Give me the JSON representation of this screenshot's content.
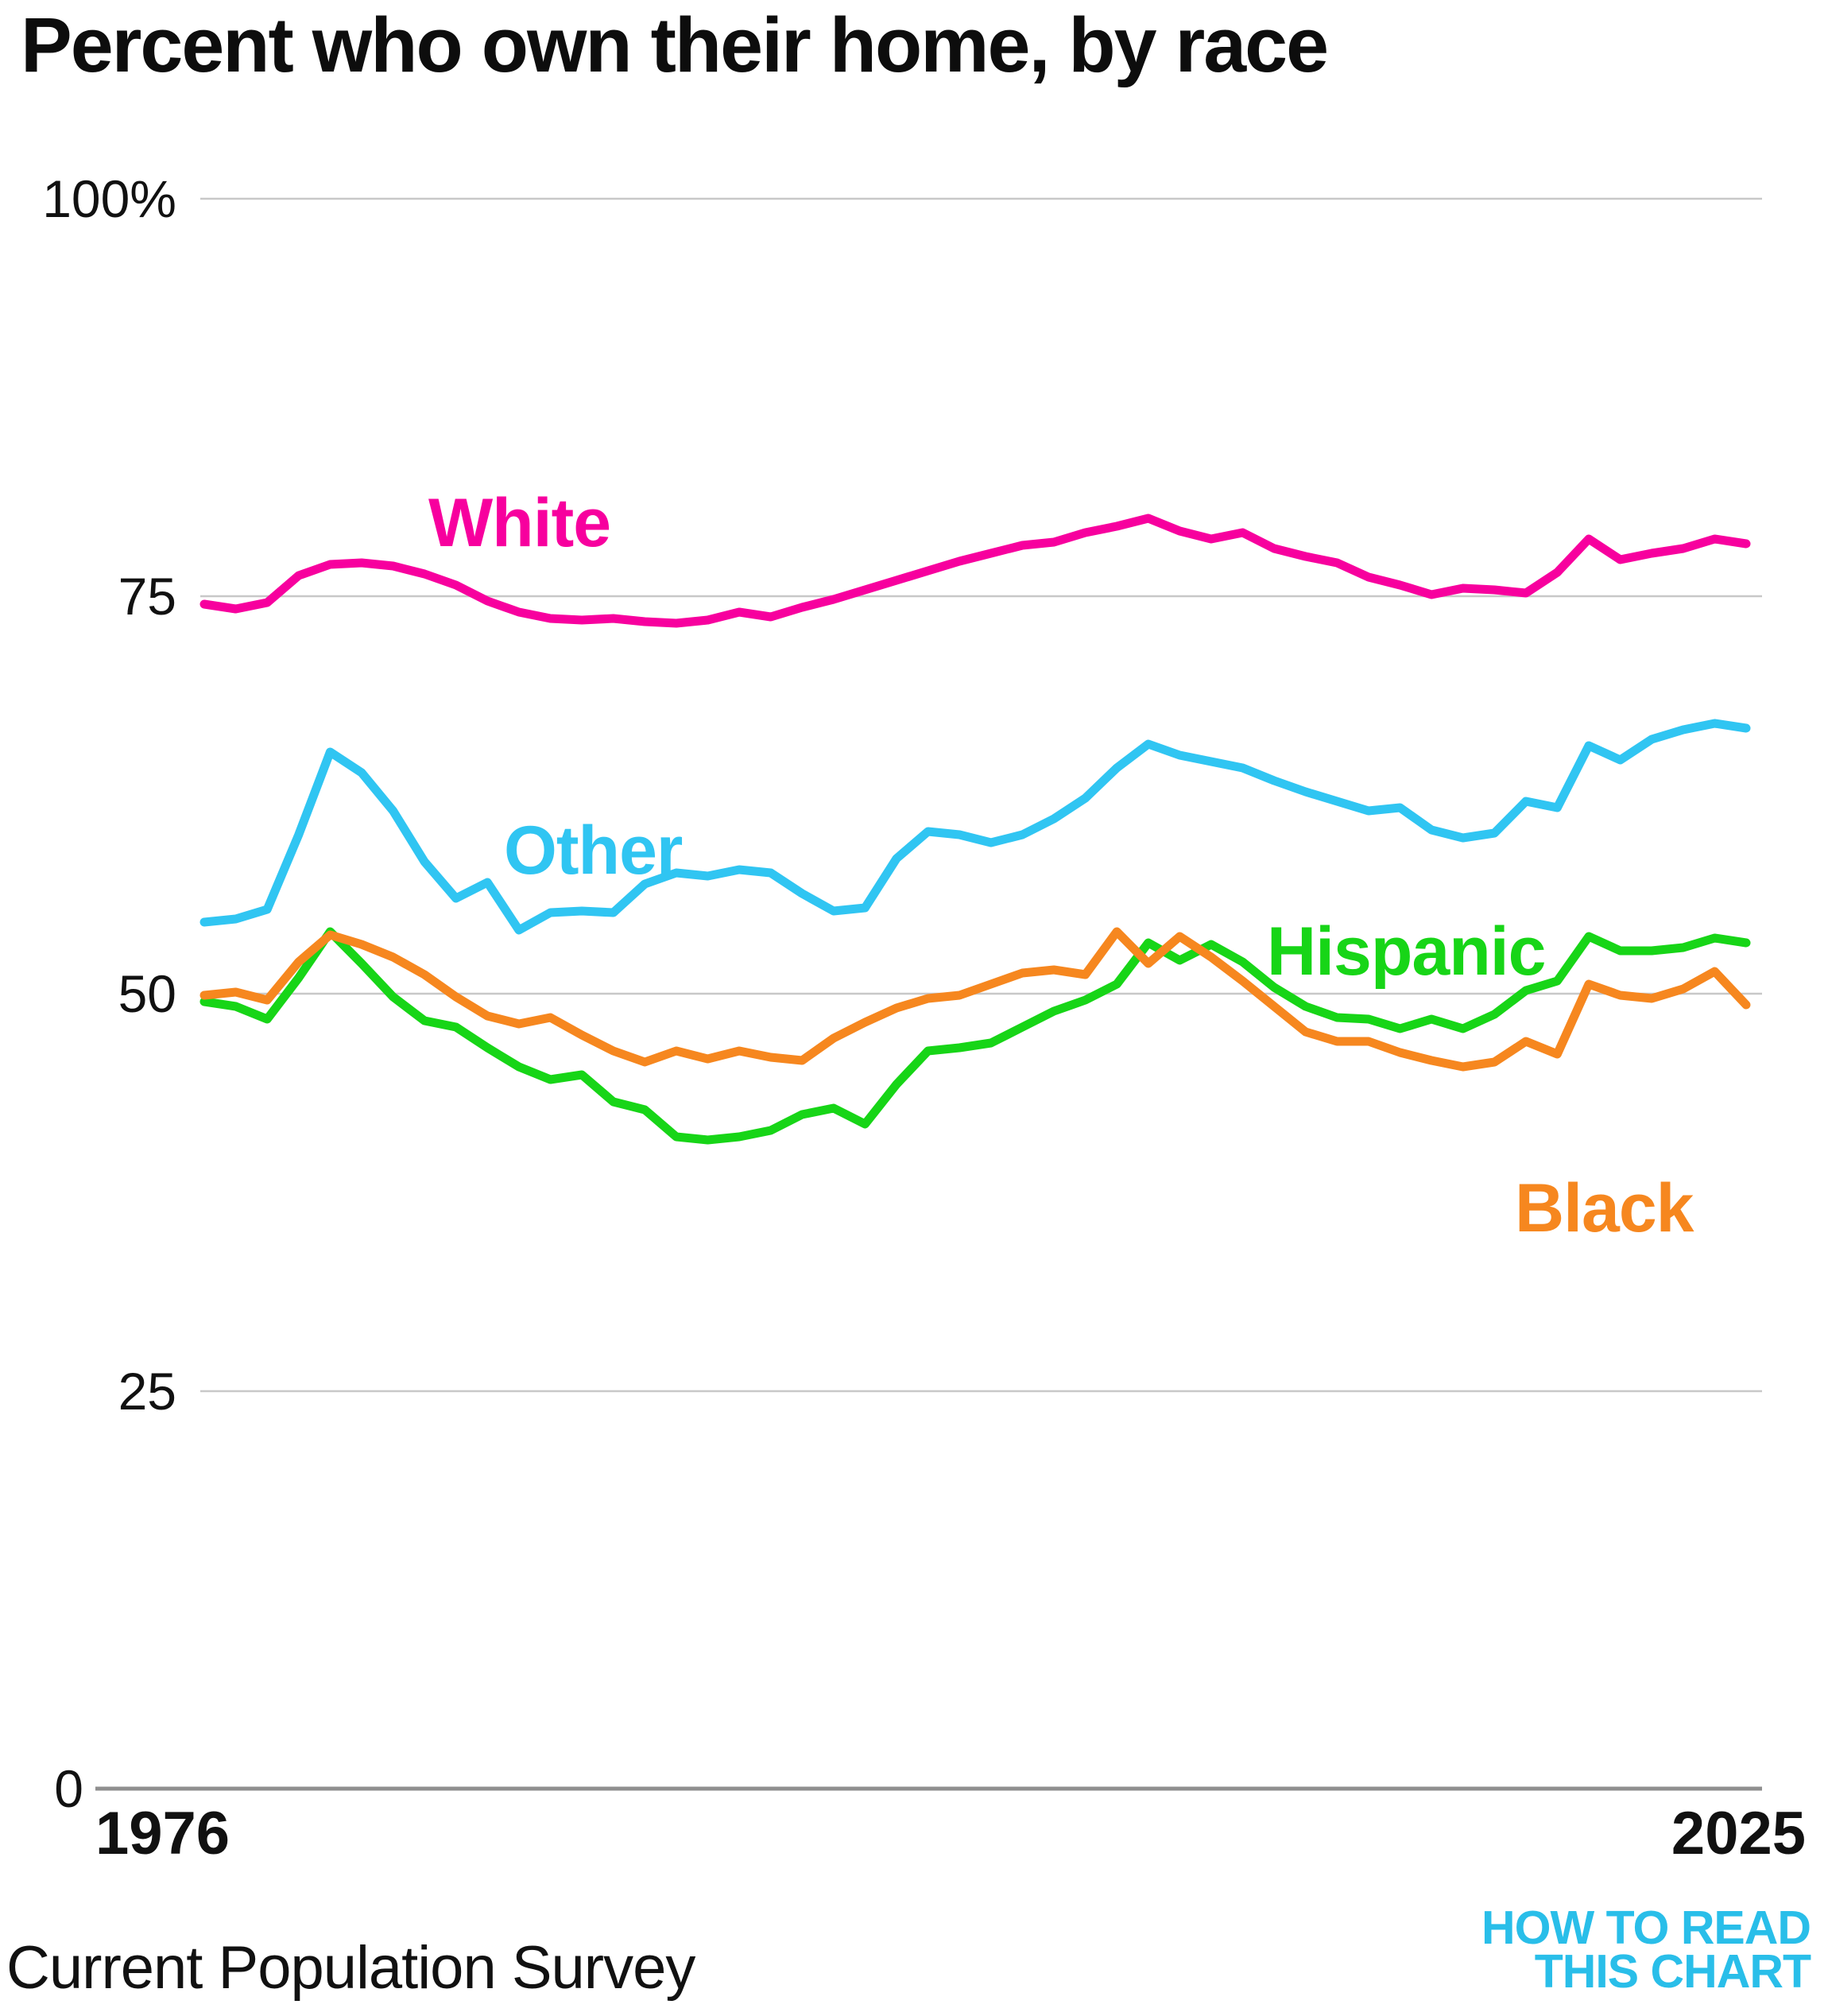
{
  "title": {
    "regular": "Percent who own their home, ",
    "bold": "by race"
  },
  "source": "Current Population Survey",
  "logo": {
    "line1": "HOW TO READ",
    "line2": "THIS CHART",
    "color": "#29bee9"
  },
  "y_axis": {
    "ticks": [
      {
        "label": "100%",
        "value": 100
      },
      {
        "label": "75",
        "value": 75
      },
      {
        "label": "50",
        "value": 50
      },
      {
        "label": "25",
        "value": 25
      },
      {
        "label": "0",
        "value": 0
      }
    ]
  },
  "x_axis": {
    "start_label": "1976",
    "end_label": "2025"
  },
  "colors": {
    "grid": "#c8c8c8",
    "axis": "#8f8f8f",
    "tick_text": "#111111",
    "white_series": "#f7009e",
    "other_series": "#30c5f2",
    "hispanic_series": "#17d517",
    "black_series": "#f6871f"
  },
  "chart_data": {
    "type": "line",
    "title": "Percent who own their home, by race",
    "xlabel": "",
    "ylabel": "Percent who own their home",
    "xlim": [
      1976,
      2025
    ],
    "ylim": [
      0,
      100
    ],
    "grid": "horizontal",
    "legend_position": "inline-labels",
    "x": [
      1976,
      1977,
      1978,
      1979,
      1980,
      1981,
      1982,
      1983,
      1984,
      1985,
      1986,
      1987,
      1988,
      1989,
      1990,
      1991,
      1992,
      1993,
      1994,
      1995,
      1996,
      1997,
      1998,
      1999,
      2000,
      2001,
      2002,
      2003,
      2004,
      2005,
      2006,
      2007,
      2008,
      2009,
      2010,
      2011,
      2012,
      2013,
      2014,
      2015,
      2016,
      2017,
      2018,
      2019,
      2020,
      2021,
      2022,
      2023,
      2024,
      2025
    ],
    "series": [
      {
        "name": "White",
        "color": "#f7009e",
        "values": [
          74.5,
          74.2,
          74.6,
          76.3,
          77.0,
          77.1,
          76.9,
          76.4,
          75.7,
          74.7,
          74.0,
          73.6,
          73.5,
          73.6,
          73.4,
          73.3,
          73.5,
          74.0,
          73.7,
          74.3,
          74.8,
          75.4,
          76.0,
          76.6,
          77.2,
          77.7,
          78.2,
          78.4,
          79.0,
          79.4,
          79.9,
          79.1,
          78.6,
          79.0,
          78.0,
          77.5,
          77.1,
          76.2,
          75.7,
          75.1,
          75.5,
          75.4,
          75.2,
          76.5,
          78.6,
          77.3,
          77.7,
          78.0,
          78.6,
          78.3
        ]
      },
      {
        "name": "Other",
        "color": "#30c5f2",
        "values": [
          54.5,
          54.7,
          55.3,
          60.0,
          65.2,
          63.9,
          61.5,
          58.3,
          56.0,
          57.0,
          54.0,
          55.1,
          55.2,
          55.1,
          56.9,
          57.6,
          57.4,
          57.8,
          57.6,
          56.3,
          55.2,
          55.4,
          58.5,
          60.2,
          60.0,
          59.5,
          60.0,
          61.0,
          62.3,
          64.2,
          65.7,
          65.0,
          64.6,
          64.2,
          63.4,
          62.7,
          62.1,
          61.5,
          61.7,
          60.3,
          59.8,
          60.1,
          62.1,
          61.7,
          65.6,
          64.7,
          66.0,
          66.6,
          67.0,
          66.7
        ]
      },
      {
        "name": "Hispanic",
        "color": "#17d517",
        "values": [
          49.5,
          49.2,
          48.4,
          51.0,
          53.9,
          51.9,
          49.8,
          48.3,
          47.9,
          46.6,
          45.4,
          44.6,
          44.9,
          43.2,
          42.7,
          41.0,
          40.8,
          41.0,
          41.4,
          42.4,
          42.8,
          41.8,
          44.3,
          46.4,
          46.6,
          46.9,
          47.9,
          48.9,
          49.6,
          50.6,
          53.2,
          52.1,
          53.1,
          52.0,
          50.4,
          49.2,
          48.5,
          48.4,
          47.8,
          48.4,
          47.8,
          48.7,
          50.2,
          50.8,
          53.6,
          52.7,
          52.7,
          52.9,
          53.5,
          53.2
        ]
      },
      {
        "name": "Black",
        "color": "#f6871f",
        "values": [
          49.9,
          50.1,
          49.6,
          52.0,
          53.7,
          53.1,
          52.3,
          51.2,
          49.8,
          48.6,
          48.1,
          48.5,
          47.4,
          46.4,
          45.7,
          46.4,
          45.9,
          46.4,
          46.0,
          45.8,
          47.2,
          48.2,
          49.1,
          49.7,
          49.9,
          50.6,
          51.3,
          51.5,
          51.2,
          53.9,
          51.9,
          53.6,
          52.3,
          50.8,
          49.2,
          47.6,
          47.0,
          47.0,
          46.3,
          45.8,
          45.4,
          45.7,
          47.0,
          46.2,
          50.6,
          49.9,
          49.7,
          50.3,
          51.4,
          49.3
        ]
      }
    ]
  }
}
